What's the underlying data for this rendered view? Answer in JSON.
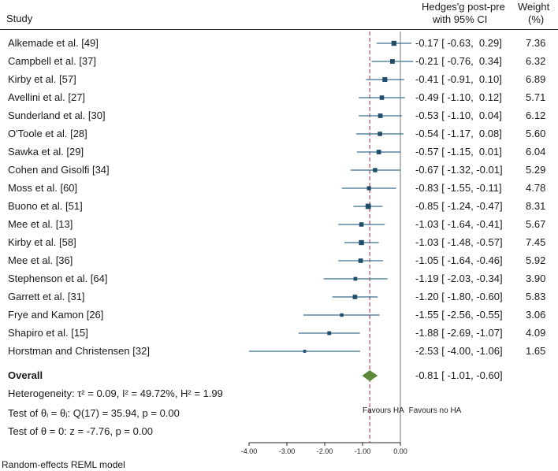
{
  "header": {
    "study_label": "Study",
    "effect_label_line1": "Hedges'g post-pre",
    "effect_label_line2": "with 95% CI",
    "weight_label_line1": "Weight",
    "weight_label_line2": "(%)"
  },
  "chart_data": {
    "type": "forest",
    "xlim": [
      -4.0,
      0.0
    ],
    "xticks": [
      -4.0,
      -3.0,
      -2.0,
      -1.0,
      0.0
    ],
    "xtick_labels": [
      "-4.00",
      "-3.00",
      "-2.00",
      "-1.00",
      "0.00"
    ],
    "null_line": 0.0,
    "overall_line": -0.81,
    "studies": [
      {
        "name": "Alkemade et al. [49]",
        "est": -0.17,
        "lo": -0.63,
        "hi": 0.29,
        "ci_text": "-0.17 [ -0.63,  0.29]",
        "weight": "7.36",
        "w": 7.36
      },
      {
        "name": "Campbell et al. [37]",
        "est": -0.21,
        "lo": -0.76,
        "hi": 0.34,
        "ci_text": "-0.21 [ -0.76,  0.34]",
        "weight": "6.32",
        "w": 6.32
      },
      {
        "name": "Kirby et al. [57]",
        "est": -0.41,
        "lo": -0.91,
        "hi": 0.1,
        "ci_text": "-0.41 [ -0.91,  0.10]",
        "weight": "6.89",
        "w": 6.89
      },
      {
        "name": "Avellini et al. [27]",
        "est": -0.49,
        "lo": -1.1,
        "hi": 0.12,
        "ci_text": "-0.49 [ -1.10,  0.12]",
        "weight": "5.71",
        "w": 5.71
      },
      {
        "name": "Sunderland et al. [30]",
        "est": -0.53,
        "lo": -1.1,
        "hi": 0.04,
        "ci_text": "-0.53 [ -1.10,  0.04]",
        "weight": "6.12",
        "w": 6.12
      },
      {
        "name": "O'Toole et al. [28]",
        "est": -0.54,
        "lo": -1.17,
        "hi": 0.08,
        "ci_text": "-0.54 [ -1.17,  0.08]",
        "weight": "5.60",
        "w": 5.6
      },
      {
        "name": "Sawka et al. [29]",
        "est": -0.57,
        "lo": -1.15,
        "hi": 0.01,
        "ci_text": "-0.57 [ -1.15,  0.01]",
        "weight": "6.04",
        "w": 6.04
      },
      {
        "name": "Cohen and Gisolfi [34]",
        "est": -0.67,
        "lo": -1.32,
        "hi": -0.01,
        "ci_text": "-0.67 [ -1.32, -0.01]",
        "weight": "5.29",
        "w": 5.29
      },
      {
        "name": "Moss et al. [60]",
        "est": -0.83,
        "lo": -1.55,
        "hi": -0.11,
        "ci_text": "-0.83 [ -1.55, -0.11]",
        "weight": "4.78",
        "w": 4.78
      },
      {
        "name": "Buono et al. [51]",
        "est": -0.85,
        "lo": -1.24,
        "hi": -0.47,
        "ci_text": "-0.85 [ -1.24, -0.47]",
        "weight": "8.31",
        "w": 8.31
      },
      {
        "name": "Mee et al. [13]",
        "est": -1.03,
        "lo": -1.64,
        "hi": -0.41,
        "ci_text": "-1.03 [ -1.64, -0.41]",
        "weight": "5.67",
        "w": 5.67
      },
      {
        "name": "Kirby et al. [58]",
        "est": -1.03,
        "lo": -1.48,
        "hi": -0.57,
        "ci_text": "-1.03 [ -1.48, -0.57]",
        "weight": "7.45",
        "w": 7.45
      },
      {
        "name": "Mee et al. [36]",
        "est": -1.05,
        "lo": -1.64,
        "hi": -0.46,
        "ci_text": "-1.05 [ -1.64, -0.46]",
        "weight": "5.92",
        "w": 5.92
      },
      {
        "name": "Stephenson et al. [64]",
        "est": -1.19,
        "lo": -2.03,
        "hi": -0.34,
        "ci_text": "-1.19 [ -2.03, -0.34]",
        "weight": "3.90",
        "w": 3.9
      },
      {
        "name": "Garrett et al. [31]",
        "est": -1.2,
        "lo": -1.8,
        "hi": -0.6,
        "ci_text": "-1.20 [ -1.80, -0.60]",
        "weight": "5.83",
        "w": 5.83
      },
      {
        "name": "Frye and Kamon [26]",
        "est": -1.55,
        "lo": -2.56,
        "hi": -0.55,
        "ci_text": "-1.55 [ -2.56, -0.55]",
        "weight": "3.06",
        "w": 3.06
      },
      {
        "name": "Shapiro et al. [15]",
        "est": -1.88,
        "lo": -2.69,
        "hi": -1.07,
        "ci_text": "-1.88 [ -2.69, -1.07]",
        "weight": "4.09",
        "w": 4.09
      },
      {
        "name": "Horstman and Christensen [32]",
        "est": -2.53,
        "lo": -4.0,
        "hi": -1.06,
        "ci_text": "-2.53 [ -4.00, -1.06]",
        "weight": "1.65",
        "w": 1.65
      }
    ],
    "overall": {
      "label": "Overall",
      "est": -0.81,
      "lo": -1.01,
      "hi": -0.6,
      "ci_text": "-0.81 [ -1.01, -0.60]"
    },
    "favours_left": "Favours HA",
    "favours_right": "Favours no HA",
    "colors": {
      "marker": "#1f4e6b",
      "ci_line": "#3a6e8f",
      "diamond": "#5a8a3a",
      "overall_line": "#b02040",
      "null_line": "#777777"
    }
  },
  "stats": {
    "heterogeneity": "Heterogeneity: τ² = 0.09, I² = 49.72%, H² = 1.99",
    "test_theta": "Test of θᵢ = θⱼ: Q(17) = 35.94, p = 0.00",
    "test_zero": "Test of θ = 0: z = -7.76, p = 0.00"
  },
  "footer": {
    "model": "Random-effects REML model"
  }
}
